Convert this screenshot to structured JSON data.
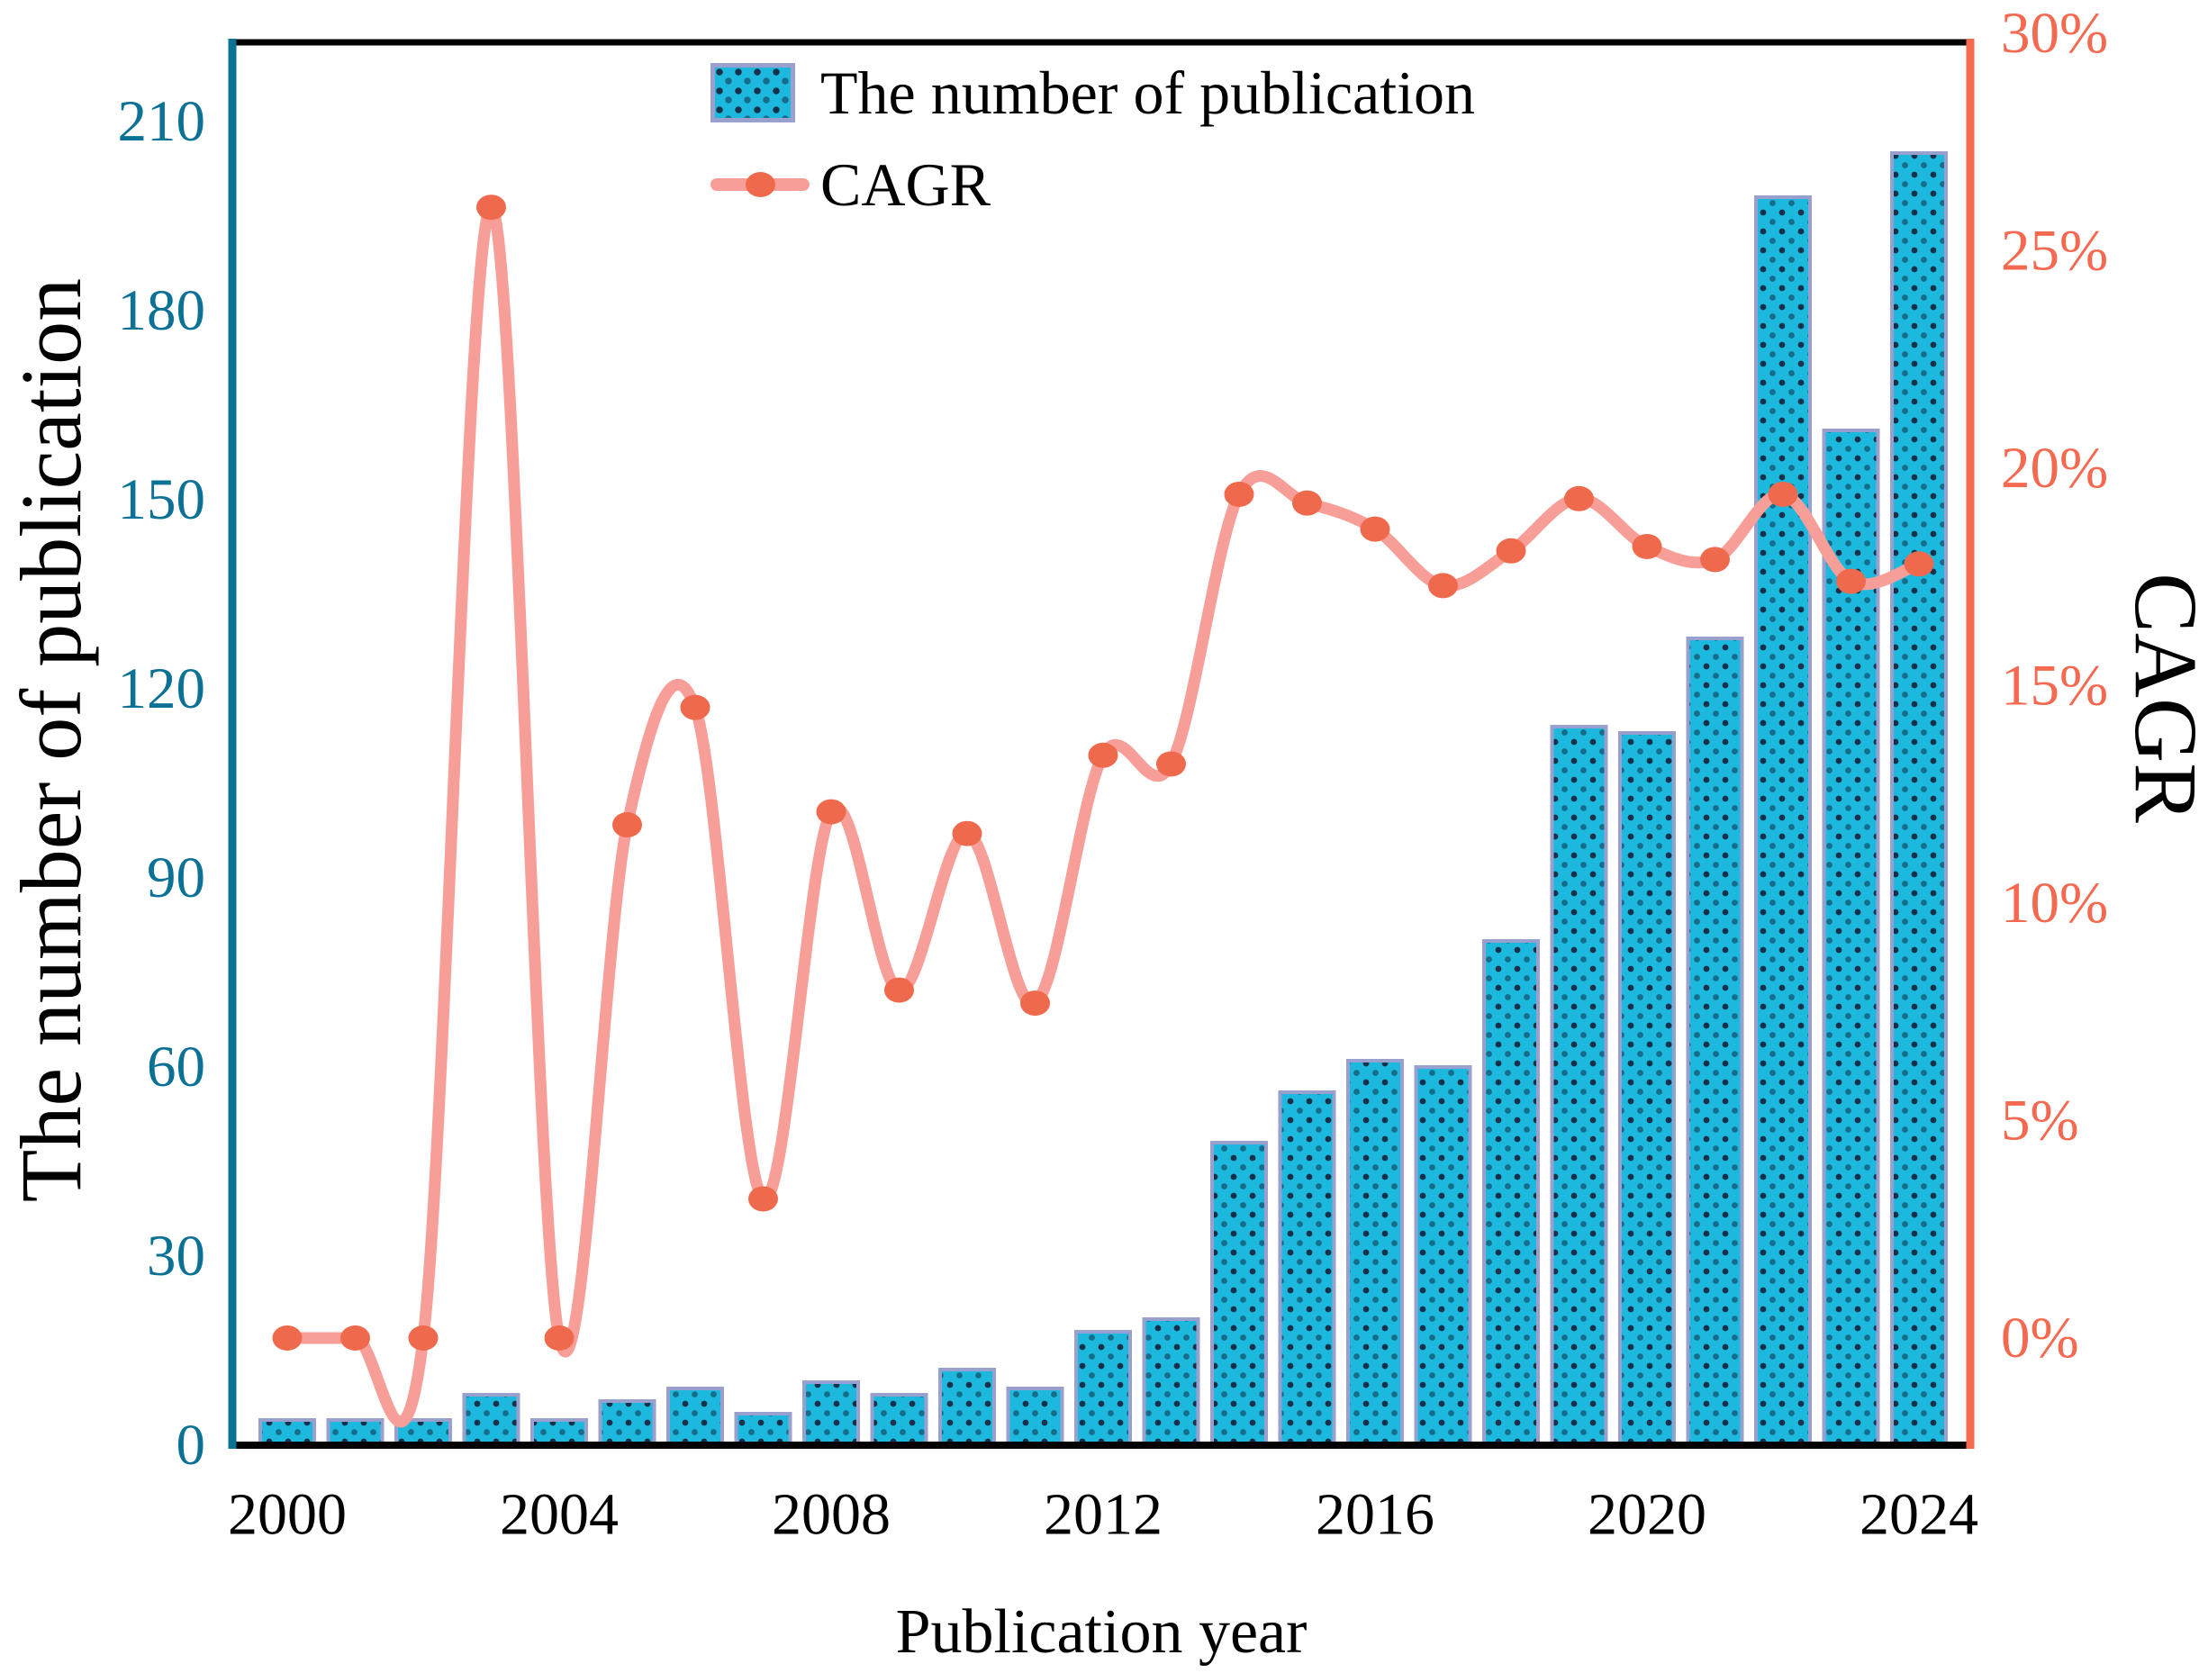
{
  "page": {
    "background": "#ffffff"
  },
  "chart_data": {
    "type": "combo",
    "title": "",
    "x": [
      2000,
      2001,
      2002,
      2003,
      2004,
      2005,
      2006,
      2007,
      2008,
      2009,
      2010,
      2011,
      2012,
      2013,
      2014,
      2015,
      2016,
      2017,
      2018,
      2019,
      2020,
      2021,
      2022,
      2023,
      2024
    ],
    "series": [
      {
        "name": "The number of publication",
        "type": "bar",
        "axis": "left",
        "color": "#1CB8DD",
        "border_color": "#9AA0CE",
        "values": [
          4,
          4,
          4,
          8,
          4,
          7,
          9,
          5,
          10,
          8,
          12,
          9,
          18,
          20,
          48,
          56,
          61,
          60,
          80,
          114,
          113,
          128,
          198,
          161,
          205
        ]
      },
      {
        "name": "CAGR",
        "type": "line",
        "axis": "right",
        "color": "#F89E98",
        "marker_color": "#EF6A4C",
        "values_percent": [
          0,
          0,
          0,
          26.0,
          0,
          11.8,
          14.5,
          3.2,
          12.1,
          8.0,
          11.6,
          7.7,
          13.4,
          13.2,
          19.4,
          19.2,
          18.6,
          17.3,
          18.1,
          19.3,
          18.2,
          17.9,
          19.4,
          17.4,
          17.8
        ]
      }
    ],
    "x_axis": {
      "label": "Publication year",
      "tick_years": [
        2000,
        2004,
        2008,
        2012,
        2016,
        2020,
        2024
      ],
      "tick_labels": [
        "2000",
        "2004",
        "2008",
        "2012",
        "2016",
        "2020",
        "2024"
      ]
    },
    "left_axis": {
      "label": "The number of publication",
      "color": "#0B7195",
      "tick_values": [
        0,
        30,
        60,
        90,
        120,
        150,
        180,
        210
      ],
      "tick_labels": [
        "0",
        "30",
        "60",
        "90",
        "120",
        "150",
        "180",
        "210"
      ],
      "range": [
        0,
        222.5
      ]
    },
    "right_axis": {
      "label": "CAGR",
      "color": "#F4694F",
      "tick_values": [
        0,
        5,
        10,
        15,
        20,
        25,
        30
      ],
      "tick_labels": [
        "0%",
        "5%",
        "10%",
        "15%",
        "20%",
        "25%",
        "30%"
      ],
      "range": [
        -2.46,
        30.05
      ]
    },
    "legend": {
      "position": "top-inside-left-of-center",
      "items": [
        "The number of publication",
        "CAGR"
      ]
    },
    "grid": false,
    "frame": {
      "top_color": "#000000",
      "bottom_color": "#000000"
    }
  }
}
